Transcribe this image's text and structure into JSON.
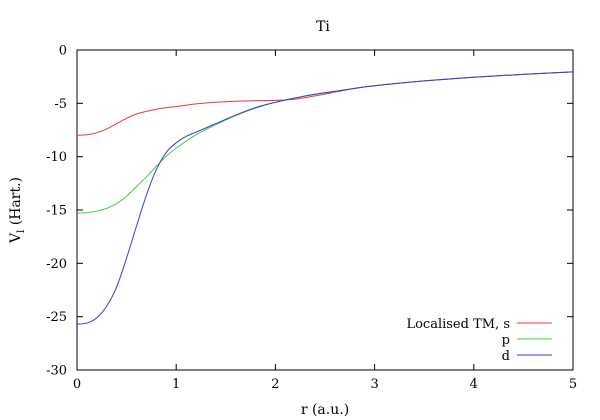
{
  "chart_data": {
    "type": "line",
    "title": "Ti",
    "xlabel": "r (a.u.)",
    "ylabel_main": "V",
    "ylabel_sub": "l",
    "ylabel_rest": " (Hart.)",
    "xlim": [
      0,
      5
    ],
    "ylim": [
      -30,
      0
    ],
    "x_ticks": [
      "0",
      "1",
      "2",
      "3",
      "4",
      "5"
    ],
    "y_ticks": [
      "0",
      "-5",
      "-10",
      "-15",
      "-20",
      "-25",
      "-30"
    ],
    "grid": false,
    "legend_position": "bottom-right",
    "series": [
      {
        "name": "Localised TM, s",
        "color": "#e8393a",
        "x": [
          0,
          0.1,
          0.2,
          0.3,
          0.4,
          0.5,
          0.6,
          0.7,
          0.8,
          0.9,
          1.0,
          1.2,
          1.4,
          1.6,
          1.8,
          2.0,
          2.2,
          2.4,
          2.6,
          2.8,
          3.0,
          3.5,
          4.0,
          4.5,
          5.0
        ],
        "y": [
          -8.0,
          -7.95,
          -7.75,
          -7.4,
          -6.9,
          -6.4,
          -6.0,
          -5.75,
          -5.55,
          -5.4,
          -5.3,
          -5.05,
          -4.9,
          -4.8,
          -4.75,
          -4.72,
          -4.6,
          -4.3,
          -3.95,
          -3.6,
          -3.35,
          -2.9,
          -2.55,
          -2.28,
          -2.05
        ]
      },
      {
        "name": "p",
        "color": "#3fcc3f",
        "x": [
          0,
          0.1,
          0.2,
          0.3,
          0.4,
          0.5,
          0.6,
          0.7,
          0.8,
          0.9,
          1.0,
          1.2,
          1.4,
          1.6,
          1.8,
          2.0,
          2.2,
          2.4,
          2.6,
          2.8,
          3.0,
          3.5,
          4.0,
          4.5,
          5.0
        ],
        "y": [
          -15.3,
          -15.25,
          -15.1,
          -14.85,
          -14.4,
          -13.7,
          -12.8,
          -11.9,
          -10.9,
          -9.95,
          -9.2,
          -7.95,
          -7.0,
          -6.15,
          -5.45,
          -4.9,
          -4.5,
          -4.15,
          -3.88,
          -3.6,
          -3.35,
          -2.9,
          -2.55,
          -2.28,
          -2.05
        ]
      },
      {
        "name": "d",
        "color": "#3a3ae0",
        "x": [
          0,
          0.1,
          0.2,
          0.3,
          0.4,
          0.5,
          0.6,
          0.7,
          0.8,
          0.9,
          1.0,
          1.1,
          1.2,
          1.4,
          1.6,
          1.8,
          2.0,
          2.2,
          2.4,
          2.6,
          2.8,
          3.0,
          3.5,
          4.0,
          4.5,
          5.0
        ],
        "y": [
          -25.7,
          -25.6,
          -25.1,
          -24.0,
          -22.2,
          -19.5,
          -16.5,
          -13.6,
          -11.2,
          -9.6,
          -8.7,
          -8.1,
          -7.7,
          -6.9,
          -6.1,
          -5.4,
          -4.9,
          -4.5,
          -4.15,
          -3.88,
          -3.6,
          -3.35,
          -2.9,
          -2.55,
          -2.28,
          -2.05
        ]
      }
    ]
  }
}
